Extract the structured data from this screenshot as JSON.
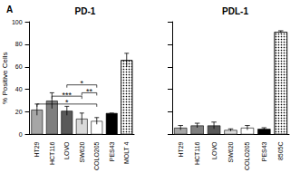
{
  "panel_label": "A",
  "chart_data": [
    {
      "type": "bar",
      "title": "PD-1",
      "y_label": "% Positive Cells",
      "categories": [
        "HT29",
        "HCT116",
        "LOVO",
        "SW620",
        "COLO205",
        "PES43",
        "MOLT 4"
      ],
      "values": [
        22,
        30,
        21,
        14,
        12,
        19,
        66
      ],
      "errors": [
        5,
        7,
        4,
        5,
        3,
        0,
        6
      ],
      "colors": [
        "#a6a6a6",
        "#7f7f7f",
        "#595959",
        "#d9d9d9",
        "#ffffff",
        "#000000",
        "#ffffff"
      ],
      "ylim": [
        0,
        100
      ],
      "yticks": [
        0,
        20,
        40,
        60,
        80,
        100
      ],
      "grid": false,
      "significance": [
        {
          "from": "HT29",
          "to": "COLO205",
          "y": 27,
          "label": "*"
        },
        {
          "from": "HCT116",
          "to": "SW620",
          "y": 34,
          "label": "***"
        },
        {
          "from": "SW620",
          "to": "COLO205",
          "y": 37,
          "label": "**"
        },
        {
          "from": "LOVO",
          "to": "COLO205",
          "y": 44,
          "label": "*"
        }
      ]
    },
    {
      "type": "bar",
      "title": "PDL-1",
      "categories": [
        "HT29",
        "HCT116",
        "LOVO",
        "SW620",
        "COLO205",
        "PES43",
        "8505C"
      ],
      "values": [
        6,
        8,
        8,
        4,
        6,
        5,
        91
      ],
      "errors": [
        2,
        2,
        3,
        1,
        2,
        1,
        1
      ],
      "colors": [
        "#a6a6a6",
        "#7f7f7f",
        "#595959",
        "#d9d9d9",
        "#ffffff",
        "#000000",
        "#ffffff"
      ],
      "ylim": [
        0,
        100
      ],
      "yticks": [
        0,
        20,
        40,
        60,
        80,
        100
      ],
      "grid": false,
      "tick_labels": "x"
    }
  ]
}
